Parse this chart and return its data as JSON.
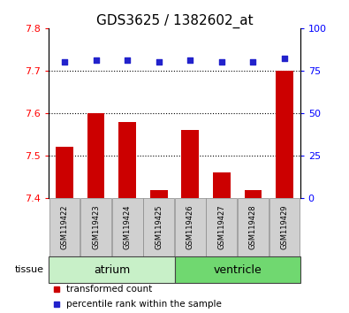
{
  "title": "GDS3625 / 1382602_at",
  "samples": [
    "GSM119422",
    "GSM119423",
    "GSM119424",
    "GSM119425",
    "GSM119426",
    "GSM119427",
    "GSM119428",
    "GSM119429"
  ],
  "transformed_counts": [
    7.52,
    7.6,
    7.58,
    7.42,
    7.56,
    7.46,
    7.42,
    7.7
  ],
  "percentile_ranks": [
    80,
    81,
    81,
    80,
    81,
    80,
    80,
    82
  ],
  "groups": [
    {
      "name": "atrium",
      "start": 0,
      "end": 4,
      "color": "#c8f0c8"
    },
    {
      "name": "ventricle",
      "start": 4,
      "end": 8,
      "color": "#70d870"
    }
  ],
  "ylim_left": [
    7.4,
    7.8
  ],
  "ylim_right": [
    0,
    100
  ],
  "yticks_left": [
    7.4,
    7.5,
    7.6,
    7.7,
    7.8
  ],
  "yticks_right": [
    0,
    25,
    50,
    75,
    100
  ],
  "bar_color": "#cc0000",
  "dot_color": "#2222cc",
  "bar_bottom": 7.4,
  "grid_values": [
    7.5,
    7.6,
    7.7
  ],
  "title_fontsize": 11,
  "tick_fontsize": 8,
  "label_fontsize": 8,
  "sample_fontsize": 6,
  "legend_fontsize": 7.5,
  "group_label_fontsize": 9
}
